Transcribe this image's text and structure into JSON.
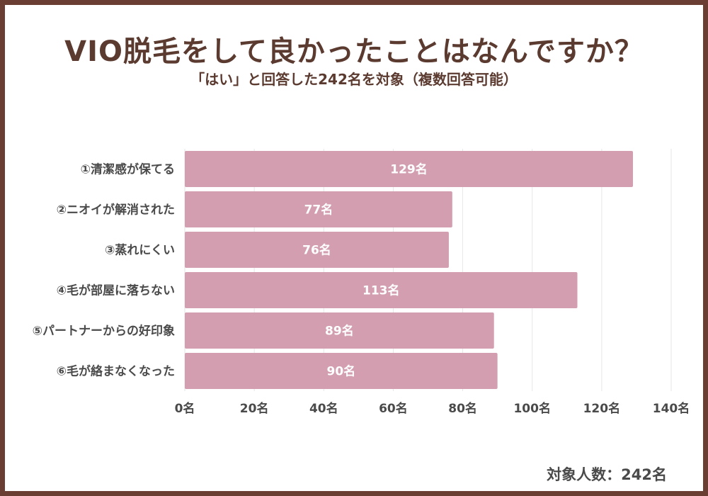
{
  "header": {
    "title": "VIO脱毛をして良かったことはなんですか？",
    "subtitle": "「はい」と回答した242名を対象（複数回答可能）"
  },
  "footer": {
    "respondents": "対象人数：242名"
  },
  "colors": {
    "bar": "#d39fb0",
    "frame": "#6b3e34",
    "title": "#5b3a30",
    "grid": "#e6e6e6",
    "label": "#4a4a4a"
  },
  "chart_data": {
    "type": "bar",
    "orientation": "horizontal",
    "categories": [
      "①清潔感が保てる",
      "②ニオイが解消された",
      "③蒸れにくい",
      "④毛が部屋に落ちない",
      "⑤パートナーからの好印象",
      "⑥毛が絡まなくなった"
    ],
    "values": [
      129,
      77,
      76,
      113,
      89,
      90
    ],
    "value_labels": [
      "129名",
      "77名",
      "76名",
      "113名",
      "89名",
      "90名"
    ],
    "xlim": [
      0,
      140
    ],
    "xticks": [
      0,
      20,
      40,
      60,
      80,
      100,
      120,
      140
    ],
    "xtick_labels": [
      "0名",
      "20名",
      "40名",
      "60名",
      "80名",
      "100名",
      "120名",
      "140名"
    ],
    "grid": true,
    "legend": "none"
  }
}
